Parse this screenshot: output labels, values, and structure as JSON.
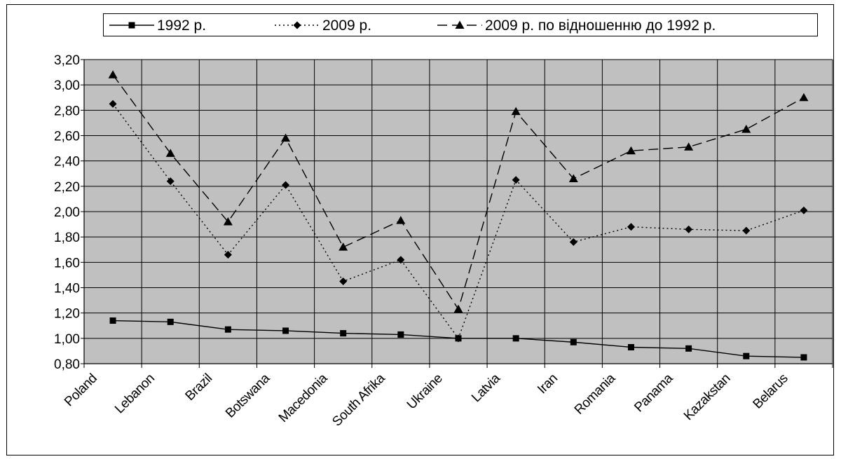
{
  "chart_data": {
    "type": "line",
    "title": "",
    "xlabel": "",
    "ylabel": "",
    "categories": [
      "Poland",
      "Lebanon",
      "Brazil",
      "Botswana",
      "Macedonia",
      "South Afrika",
      "Ukraine",
      "Latvia",
      "Iran",
      "Romania",
      "Panama",
      "Kazakstan",
      "Belarus"
    ],
    "ylim": [
      0.8,
      3.2
    ],
    "yticks": [
      "0,80",
      "1,00",
      "1,20",
      "1,40",
      "1,60",
      "1,80",
      "2,00",
      "2,20",
      "2,40",
      "2,60",
      "2,80",
      "3,00",
      "3,20"
    ],
    "grid": true,
    "plot_background": "#c0c0c0",
    "legend_position": "top",
    "series": [
      {
        "name": "1992 р.",
        "line": "solid",
        "marker": "square",
        "values": [
          1.14,
          1.13,
          1.07,
          1.06,
          1.04,
          1.03,
          1.0,
          1.0,
          0.97,
          0.93,
          0.92,
          0.86,
          0.85
        ]
      },
      {
        "name": "2009 р.",
        "line": "dotted",
        "marker": "diamond",
        "values": [
          2.85,
          2.24,
          1.66,
          2.21,
          1.45,
          1.62,
          1.0,
          2.25,
          1.76,
          1.88,
          1.86,
          1.85,
          2.01
        ]
      },
      {
        "name": "2009 р. по відношенню до 1992 р.",
        "line": "dashed",
        "marker": "triangle",
        "values": [
          3.08,
          2.46,
          1.92,
          2.58,
          1.72,
          1.93,
          1.23,
          2.79,
          2.26,
          2.48,
          2.51,
          2.65,
          2.9
        ]
      }
    ]
  }
}
